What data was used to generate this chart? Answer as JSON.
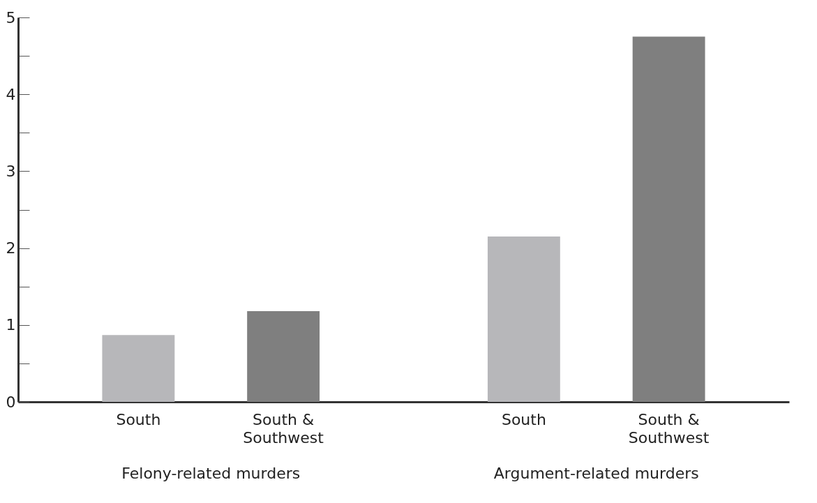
{
  "chart_data": {
    "type": "bar",
    "categories": [
      "Felony-related murders",
      "Argument-related murders"
    ],
    "series": [
      {
        "name": "South",
        "color": "#b7b7ba",
        "values": [
          0.87,
          2.15
        ]
      },
      {
        "name": "South & Southwest",
        "color": "#7f7f7f",
        "values": [
          1.18,
          4.75
        ]
      }
    ],
    "ylim": [
      0,
      5
    ],
    "yticks": [
      0,
      {
        "value": 0.5,
        "label": null
      },
      1,
      {
        "value": 1.5,
        "label": null
      },
      2,
      {
        "value": 2.5,
        "label": null
      },
      3,
      {
        "value": 3.5,
        "label": null
      },
      4,
      {
        "value": 4.5,
        "label": null
      },
      5
    ]
  }
}
